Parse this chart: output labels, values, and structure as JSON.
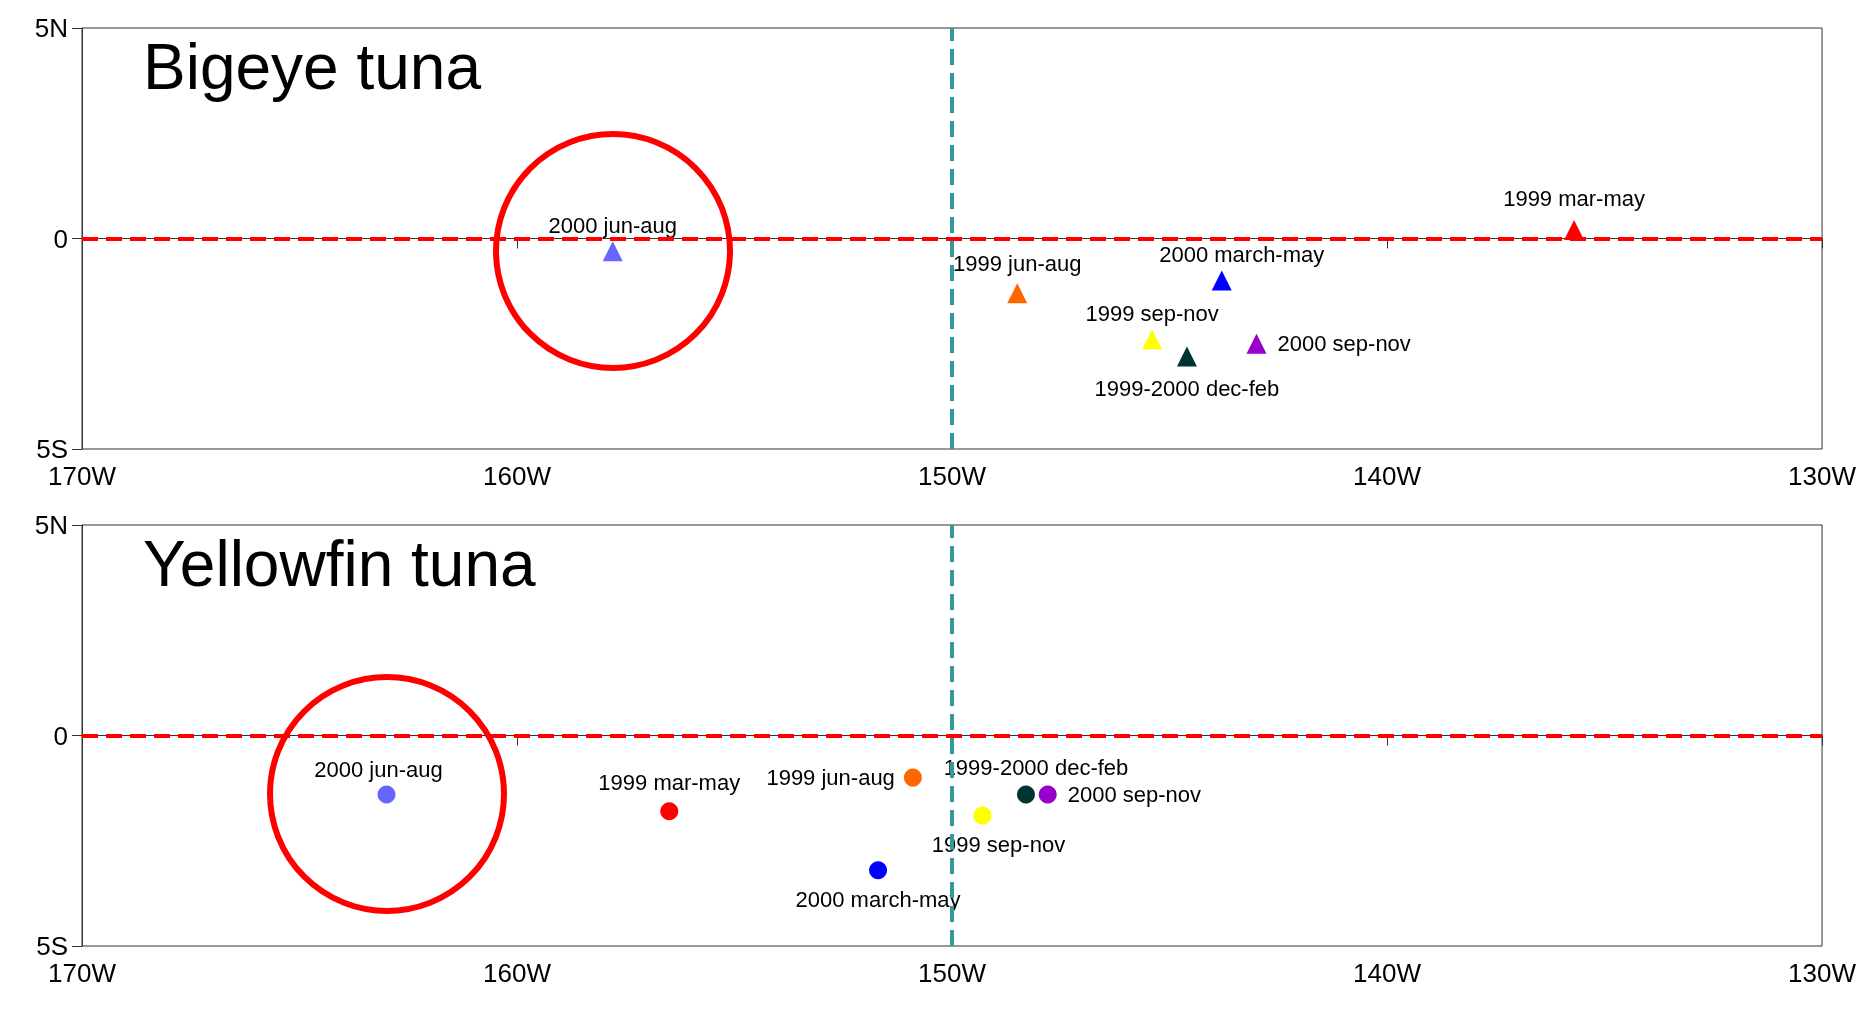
{
  "chart_data": [
    {
      "type": "scatter",
      "title": "Bigeye tuna",
      "marker": "triangle",
      "legend": false,
      "grid": false,
      "xlim": [
        -170,
        -130
      ],
      "xticks": [
        {
          "value": -170,
          "label": "170W"
        },
        {
          "value": -160,
          "label": "160W"
        },
        {
          "value": -150,
          "label": "150W"
        },
        {
          "value": -140,
          "label": "140W"
        },
        {
          "value": -130,
          "label": "130W"
        }
      ],
      "ylim": [
        -5,
        5
      ],
      "yticks": [
        {
          "value": -5,
          "label": "5S"
        },
        {
          "value": 0,
          "label": "0"
        },
        {
          "value": 5,
          "label": "5N"
        }
      ],
      "ref_lines": [
        {
          "axis": "y",
          "value": 0,
          "color": "#ff0000",
          "line_style": "dashed"
        },
        {
          "axis": "x",
          "value": -150,
          "color": "#339999",
          "line_style": "dashed"
        }
      ],
      "series": [
        {
          "name": "2000 jun-aug",
          "color": "#6666ff",
          "x": [
            -157.8
          ],
          "values": [
            -0.3
          ]
        },
        {
          "name": "1999 mar-may",
          "color": "#ff0000",
          "x": [
            -135.7
          ],
          "values": [
            0.2
          ]
        },
        {
          "name": "2000 march-may",
          "color": "#0000ff",
          "x": [
            -143.8
          ],
          "values": [
            -1.0
          ]
        },
        {
          "name": "1999 jun-aug",
          "color": "#ff6600",
          "x": [
            -148.5
          ],
          "values": [
            -1.3
          ]
        },
        {
          "name": "1999 sep-nov",
          "color": "#ffff00",
          "x": [
            -145.4
          ],
          "values": [
            -2.4
          ]
        },
        {
          "name": "1999-2000 dec-feb",
          "color": "#003333",
          "x": [
            -144.6
          ],
          "values": [
            -2.8
          ]
        },
        {
          "name": "2000 sep-nov",
          "color": "#9900cc",
          "x": [
            -143.0
          ],
          "values": [
            -2.5
          ]
        }
      ]
    },
    {
      "type": "scatter",
      "title": "Yellowfin tuna",
      "marker": "circle",
      "legend": false,
      "grid": false,
      "xlim": [
        -170,
        -130
      ],
      "xticks": [
        {
          "value": -170,
          "label": "170W"
        },
        {
          "value": -160,
          "label": "160W"
        },
        {
          "value": -150,
          "label": "150W"
        },
        {
          "value": -140,
          "label": "140W"
        },
        {
          "value": -130,
          "label": "130W"
        }
      ],
      "ylim": [
        -5,
        5
      ],
      "yticks": [
        {
          "value": -5,
          "label": "5S"
        },
        {
          "value": 0,
          "label": "0"
        },
        {
          "value": 5,
          "label": "5N"
        }
      ],
      "ref_lines": [
        {
          "axis": "y",
          "value": 0,
          "color": "#ff0000",
          "line_style": "dashed"
        },
        {
          "axis": "x",
          "value": -150,
          "color": "#339999",
          "line_style": "dashed"
        }
      ],
      "series": [
        {
          "name": "2000 jun-aug",
          "color": "#6666ff",
          "x": [
            -163.0
          ],
          "values": [
            -1.4
          ]
        },
        {
          "name": "1999 mar-may",
          "color": "#ff0000",
          "x": [
            -156.5
          ],
          "values": [
            -1.8
          ]
        },
        {
          "name": "2000 march-may",
          "color": "#0000ff",
          "x": [
            -151.7
          ],
          "values": [
            -3.2
          ]
        },
        {
          "name": "1999 jun-aug",
          "color": "#ff6600",
          "x": [
            -150.9
          ],
          "values": [
            -1.0
          ]
        },
        {
          "name": "1999 sep-nov",
          "color": "#ffff00",
          "x": [
            -149.3
          ],
          "values": [
            -1.9
          ]
        },
        {
          "name": "1999-2000 dec-feb",
          "color": "#003333",
          "x": [
            -148.3
          ],
          "values": [
            -1.4
          ]
        },
        {
          "name": "2000 sep-nov",
          "color": "#9900cc",
          "x": [
            -147.8
          ],
          "values": [
            -1.4
          ]
        }
      ]
    }
  ]
}
